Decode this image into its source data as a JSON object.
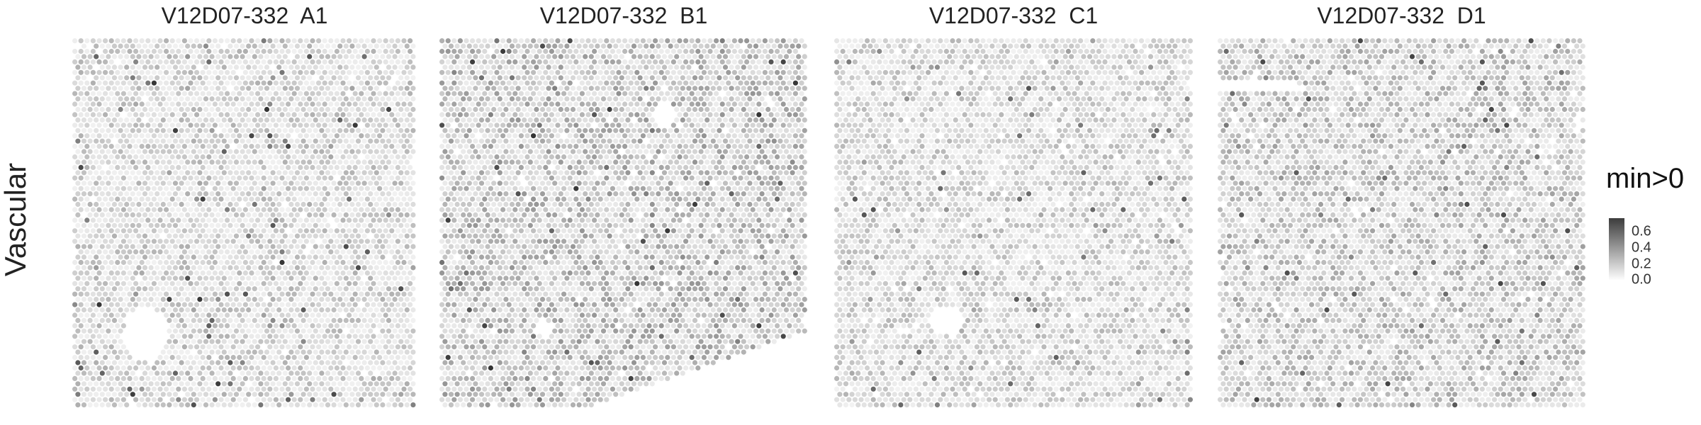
{
  "row_label": "Vascular",
  "panels": [
    {
      "title": "V12D07-332  A1"
    },
    {
      "title": "V12D07-332  B1"
    },
    {
      "title": "V12D07-332  C1"
    },
    {
      "title": "V12D07-332  D1"
    }
  ],
  "legend": {
    "title": "min>0",
    "ticks": [
      "0.6",
      "0.4",
      "0.2",
      "0.0"
    ],
    "range": [
      0,
      0.65
    ],
    "low_color": "#ffffff",
    "high_color": "#333333"
  },
  "chart_data": {
    "type": "heatmap",
    "description_kind": "spatial spot map",
    "row_label": "Vascular",
    "color_scale": {
      "title": "min>0",
      "min": 0.0,
      "max": 0.65,
      "ticks": [
        0.0,
        0.2,
        0.4,
        0.6
      ]
    },
    "panels": [
      {
        "sample": "V12D07-332  A1",
        "typical_value": 0.15,
        "max_value": 0.65
      },
      {
        "sample": "V12D07-332  B1",
        "typical_value": 0.2,
        "max_value": 0.65
      },
      {
        "sample": "V12D07-332  C1",
        "typical_value": 0.14,
        "max_value": 0.55
      },
      {
        "sample": "V12D07-332  D1",
        "typical_value": 0.18,
        "max_value": 0.6
      }
    ]
  }
}
